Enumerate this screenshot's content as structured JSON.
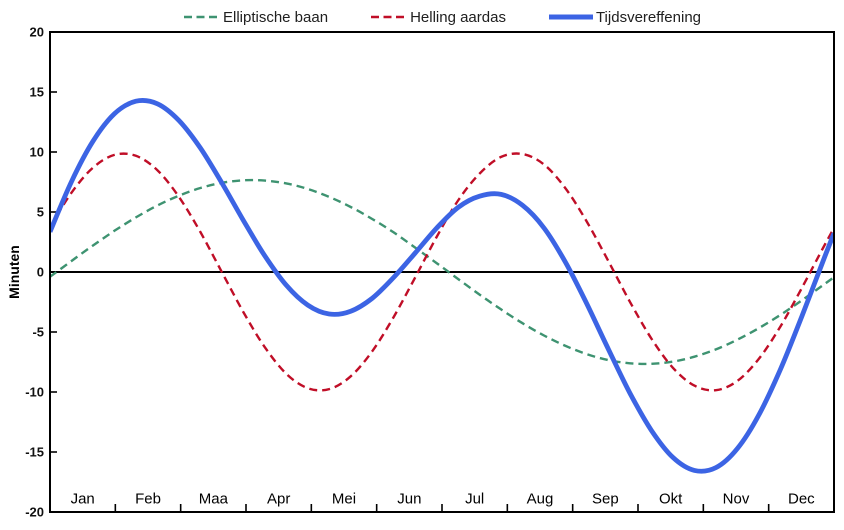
{
  "chart_data": {
    "type": "line",
    "title": "",
    "xlabel": "",
    "ylabel": "Minuten",
    "ylim": [
      -20,
      20
    ],
    "ytick_step": 5,
    "yticks": [
      20,
      15,
      10,
      5,
      0,
      -5,
      -10,
      -15,
      -20
    ],
    "x_unit": "day_of_year",
    "xlim": [
      0,
      365
    ],
    "months": [
      "Jan",
      "Feb",
      "Maa",
      "Apr",
      "Mei",
      "Jun",
      "Jul",
      "Aug",
      "Sep",
      "Okt",
      "Nov",
      "Dec"
    ],
    "grid": false,
    "legend_position": "top",
    "axis_color": "#000000",
    "background": "#ffffff",
    "zero_line": true,
    "x": [
      0,
      10,
      20,
      30,
      40,
      50,
      60,
      70,
      80,
      90,
      100,
      110,
      120,
      130,
      140,
      150,
      160,
      170,
      180,
      190,
      200,
      210,
      220,
      230,
      240,
      250,
      260,
      270,
      280,
      290,
      300,
      310,
      320,
      330,
      340,
      350,
      360,
      365
    ],
    "series": [
      {
        "name": "Elliptische baan",
        "color": "#3E9371",
        "style": "dashed",
        "width": 2.4,
        "values": [
          -0.4,
          0.92,
          2.21,
          3.43,
          4.55,
          5.54,
          6.36,
          7.0,
          7.43,
          7.64,
          7.62,
          7.38,
          6.92,
          6.26,
          5.42,
          4.42,
          3.3,
          2.03,
          0.74,
          -0.58,
          -1.88,
          -3.12,
          -4.27,
          -5.29,
          -6.16,
          -6.85,
          -7.34,
          -7.61,
          -7.65,
          -7.47,
          -7.06,
          -6.45,
          -5.64,
          -4.68,
          -3.58,
          -2.37,
          -1.08,
          -0.43
        ]
      },
      {
        "name": "Helling aardas",
        "color": "#C00E27",
        "style": "dashed",
        "width": 2.4,
        "values": [
          3.75,
          6.61,
          8.69,
          9.76,
          9.68,
          8.48,
          6.27,
          3.33,
          0.0,
          -3.33,
          -6.27,
          -8.48,
          -9.68,
          -9.76,
          -8.69,
          -6.61,
          -3.75,
          -0.45,
          2.92,
          5.96,
          8.2,
          9.59,
          9.83,
          8.96,
          6.97,
          4.17,
          0.89,
          -2.48,
          -5.55,
          -7.98,
          -9.47,
          -9.85,
          -9.08,
          -7.24,
          -4.56,
          -1.34,
          2.04,
          3.66
        ]
      },
      {
        "name": "Tijdsvereffening",
        "color": "#3C64E4",
        "style": "solid",
        "width": 4.8,
        "values": [
          3.35,
          7.53,
          10.9,
          13.19,
          14.23,
          14.02,
          12.63,
          10.33,
          7.43,
          4.31,
          1.35,
          -1.1,
          -2.76,
          -3.5,
          -3.27,
          -2.19,
          -0.45,
          1.58,
          3.66,
          5.38,
          6.32,
          6.47,
          5.56,
          3.67,
          0.81,
          -2.68,
          -6.45,
          -10.09,
          -13.2,
          -15.45,
          -16.53,
          -16.3,
          -14.72,
          -11.92,
          -8.14,
          -3.71,
          0.96,
          3.23
        ]
      }
    ]
  }
}
